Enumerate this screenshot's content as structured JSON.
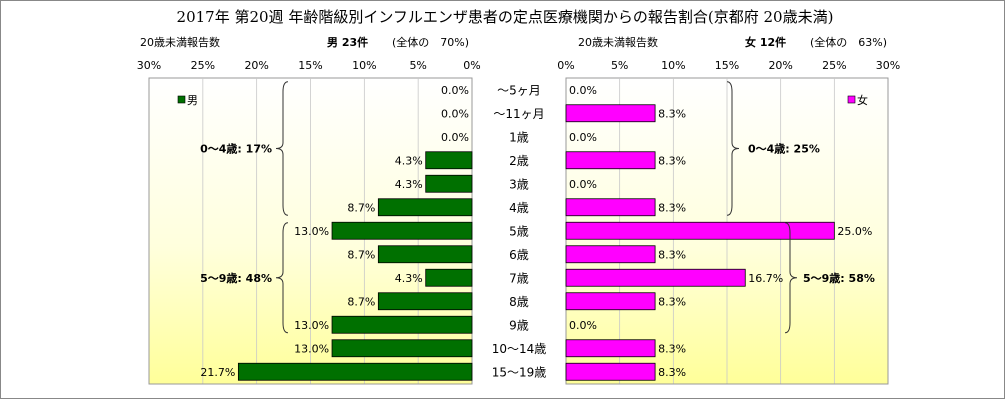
{
  "title": "2017年 第20週 年齢階級別インフルエンザ患者の定点医療機関からの報告割合(京都府 20歳未満)",
  "chart_data": [
    {
      "type": "bar",
      "orientation": "horizontal",
      "panel": "left",
      "subtitle_count_label": "20歳未満報告数",
      "subtitle_total": "男 23件",
      "subtitle_share": "(全体の　70%)",
      "legend": "男",
      "legend_position": "top-left",
      "color": "#007000",
      "xlim": [
        0,
        30
      ],
      "ticks": [
        "30%",
        "25%",
        "20%",
        "15%",
        "10%",
        "5%",
        "0%"
      ],
      "tick_values": [
        30,
        25,
        20,
        15,
        10,
        5,
        0
      ],
      "values": [
        0.0,
        0.0,
        0.0,
        4.3,
        4.3,
        8.7,
        13.0,
        8.7,
        4.3,
        8.7,
        13.0,
        13.0,
        21.7
      ],
      "value_labels": [
        "0.0%",
        "0.0%",
        "0.0%",
        "4.3%",
        "4.3%",
        "8.7%",
        "13.0%",
        "8.7%",
        "4.3%",
        "8.7%",
        "13.0%",
        "13.0%",
        "21.7%"
      ],
      "annotations": [
        {
          "text": "0～4歳: 17%",
          "from": 0,
          "to": 5
        },
        {
          "text": "5～9歳: 48%",
          "from": 6,
          "to": 10
        }
      ]
    },
    {
      "type": "bar",
      "orientation": "horizontal",
      "panel": "right",
      "subtitle_count_label": "20歳未満報告数",
      "subtitle_total": "女 12件",
      "subtitle_share": "(全体の　63%)",
      "legend": "女",
      "legend_position": "top-right",
      "color": "#ff00ff",
      "xlim": [
        0,
        30
      ],
      "ticks": [
        "0%",
        "5%",
        "10%",
        "15%",
        "20%",
        "25%",
        "30%"
      ],
      "tick_values": [
        0,
        5,
        10,
        15,
        20,
        25,
        30
      ],
      "values": [
        0.0,
        8.3,
        0.0,
        8.3,
        0.0,
        8.3,
        25.0,
        8.3,
        16.7,
        8.3,
        0.0,
        8.3,
        8.3
      ],
      "value_labels": [
        "0.0%",
        "8.3%",
        "0.0%",
        "8.3%",
        "0.0%",
        "8.3%",
        "25.0%",
        "8.3%",
        "16.7%",
        "8.3%",
        "0.0%",
        "8.3%",
        "8.3%"
      ],
      "annotations": [
        {
          "text": "0～4歳: 25%",
          "from": 0,
          "to": 5
        },
        {
          "text": "5～9歳: 58%",
          "from": 6,
          "to": 10
        }
      ]
    }
  ],
  "categories": [
    "～5ヶ月",
    "～11ヶ月",
    "1歳",
    "2歳",
    "3歳",
    "4歳",
    "5歳",
    "6歳",
    "7歳",
    "8歳",
    "9歳",
    "10～14歳",
    "15～19歳"
  ],
  "colors": {
    "male": "#007000",
    "female": "#ff00ff",
    "panel_top": "#ffffff",
    "panel_bottom": "#ffff99"
  }
}
